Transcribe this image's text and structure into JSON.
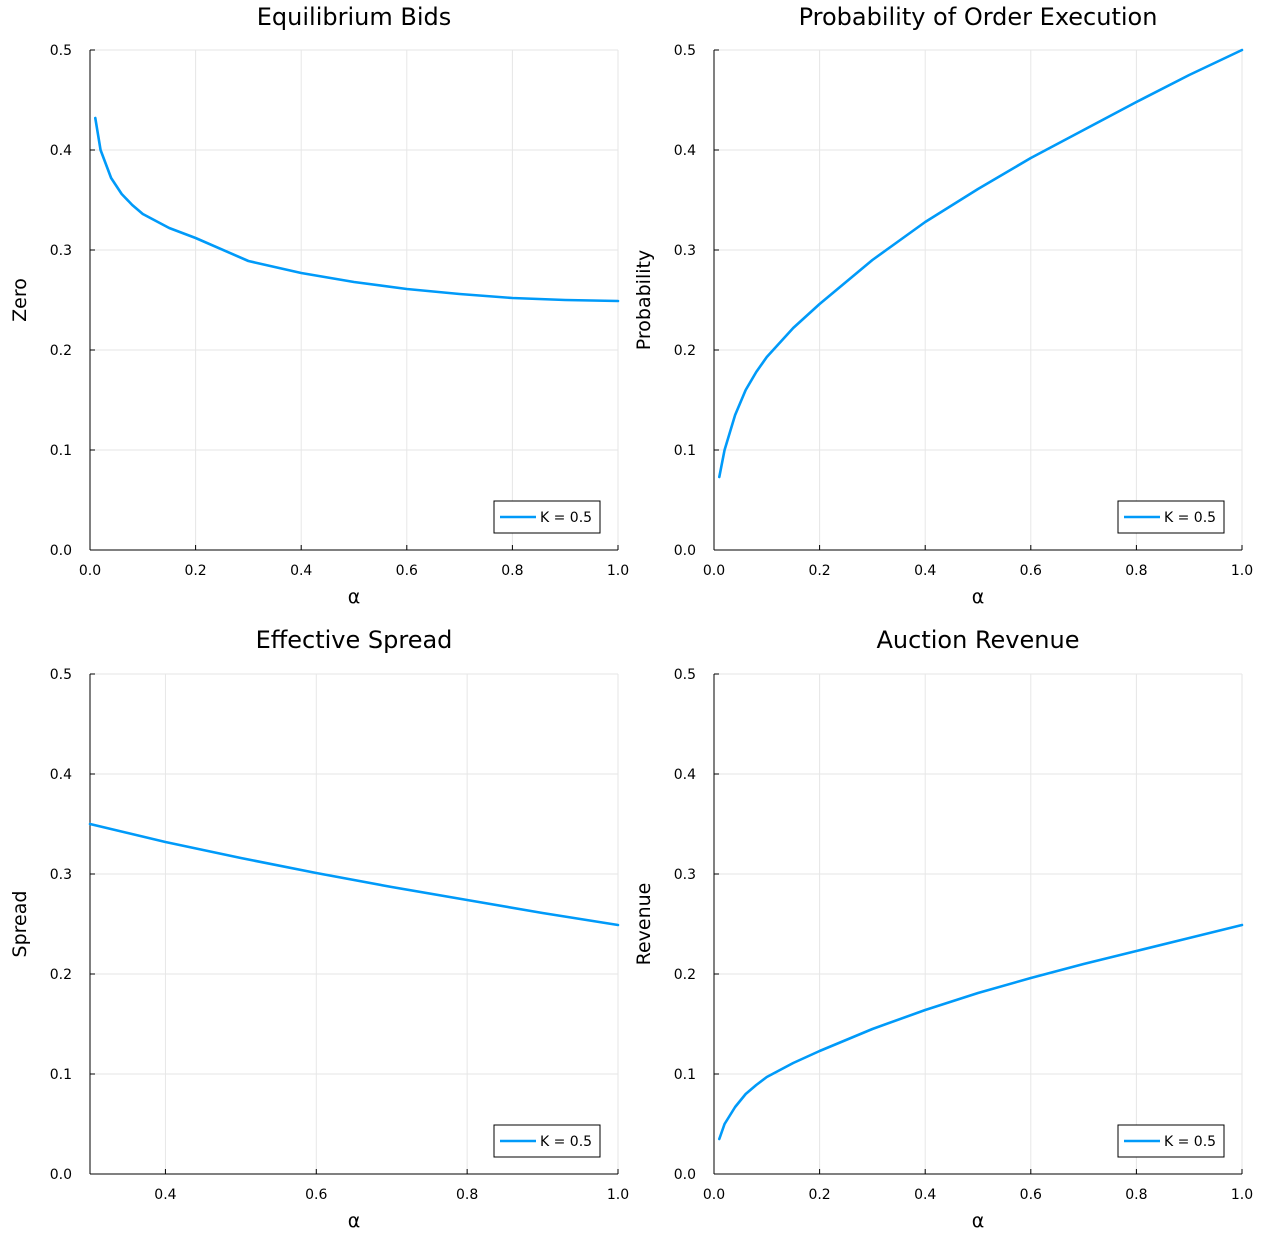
{
  "chart_data": [
    {
      "type": "line",
      "title": "Equilibrium Bids",
      "xlabel": "α",
      "ylabel": "Zero",
      "xlim": [
        0.0,
        1.0
      ],
      "ylim": [
        0.0,
        0.5
      ],
      "xticks": [
        "0.0",
        "0.2",
        "0.4",
        "0.6",
        "0.8",
        "1.0"
      ],
      "yticks": [
        "0.0",
        "0.1",
        "0.2",
        "0.3",
        "0.4",
        "0.5"
      ],
      "grid": true,
      "legend_position": "bottom-right",
      "series": [
        {
          "name": "K = 0.5",
          "color": "#009af9",
          "x": [
            0.01,
            0.02,
            0.04,
            0.06,
            0.08,
            0.1,
            0.15,
            0.2,
            0.3,
            0.4,
            0.5,
            0.6,
            0.7,
            0.8,
            0.9,
            1.0
          ],
          "y": [
            0.432,
            0.4,
            0.372,
            0.356,
            0.345,
            0.336,
            0.322,
            0.312,
            0.289,
            0.277,
            0.268,
            0.261,
            0.256,
            0.252,
            0.25,
            0.249
          ]
        }
      ]
    },
    {
      "type": "line",
      "title": "Probability of Order Execution",
      "xlabel": "α",
      "ylabel": "Probability",
      "xlim": [
        0.0,
        1.0
      ],
      "ylim": [
        0.0,
        0.5
      ],
      "xticks": [
        "0.0",
        "0.2",
        "0.4",
        "0.6",
        "0.8",
        "1.0"
      ],
      "yticks": [
        "0.0",
        "0.1",
        "0.2",
        "0.3",
        "0.4",
        "0.5"
      ],
      "grid": true,
      "legend_position": "bottom-right",
      "series": [
        {
          "name": "K = 0.5",
          "color": "#009af9",
          "x": [
            0.01,
            0.02,
            0.04,
            0.06,
            0.08,
            0.1,
            0.15,
            0.2,
            0.3,
            0.4,
            0.5,
            0.6,
            0.7,
            0.8,
            0.9,
            1.0
          ],
          "y": [
            0.073,
            0.1,
            0.135,
            0.16,
            0.178,
            0.193,
            0.222,
            0.246,
            0.29,
            0.328,
            0.361,
            0.392,
            0.42,
            0.448,
            0.475,
            0.5
          ]
        }
      ]
    },
    {
      "type": "line",
      "title": "Effective Spread",
      "xlabel": "α",
      "ylabel": "Spread",
      "xlim": [
        0.3,
        1.0
      ],
      "ylim": [
        0.0,
        0.5
      ],
      "xticks": [
        "0.4",
        "0.6",
        "0.8",
        "1.0"
      ],
      "yticks": [
        "0.0",
        "0.1",
        "0.2",
        "0.3",
        "0.4",
        "0.5"
      ],
      "grid": true,
      "legend_position": "bottom-right",
      "series": [
        {
          "name": "K = 0.5",
          "color": "#009af9",
          "x": [
            0.3,
            0.4,
            0.5,
            0.6,
            0.7,
            0.8,
            0.9,
            1.0
          ],
          "y": [
            0.35,
            0.332,
            0.316,
            0.301,
            0.287,
            0.274,
            0.261,
            0.249
          ]
        }
      ]
    },
    {
      "type": "line",
      "title": "Auction Revenue",
      "xlabel": "α",
      "ylabel": "Revenue",
      "xlim": [
        0.0,
        1.0
      ],
      "ylim": [
        0.0,
        0.5
      ],
      "xticks": [
        "0.0",
        "0.2",
        "0.4",
        "0.6",
        "0.8",
        "1.0"
      ],
      "yticks": [
        "0.0",
        "0.1",
        "0.2",
        "0.3",
        "0.4",
        "0.5"
      ],
      "grid": true,
      "legend_position": "bottom-right",
      "series": [
        {
          "name": "K = 0.5",
          "color": "#009af9",
          "x": [
            0.01,
            0.02,
            0.04,
            0.06,
            0.08,
            0.1,
            0.15,
            0.2,
            0.3,
            0.4,
            0.5,
            0.6,
            0.7,
            0.8,
            0.9,
            1.0
          ],
          "y": [
            0.035,
            0.05,
            0.067,
            0.08,
            0.089,
            0.097,
            0.111,
            0.123,
            0.145,
            0.164,
            0.181,
            0.196,
            0.21,
            0.223,
            0.236,
            0.249
          ]
        }
      ]
    }
  ]
}
